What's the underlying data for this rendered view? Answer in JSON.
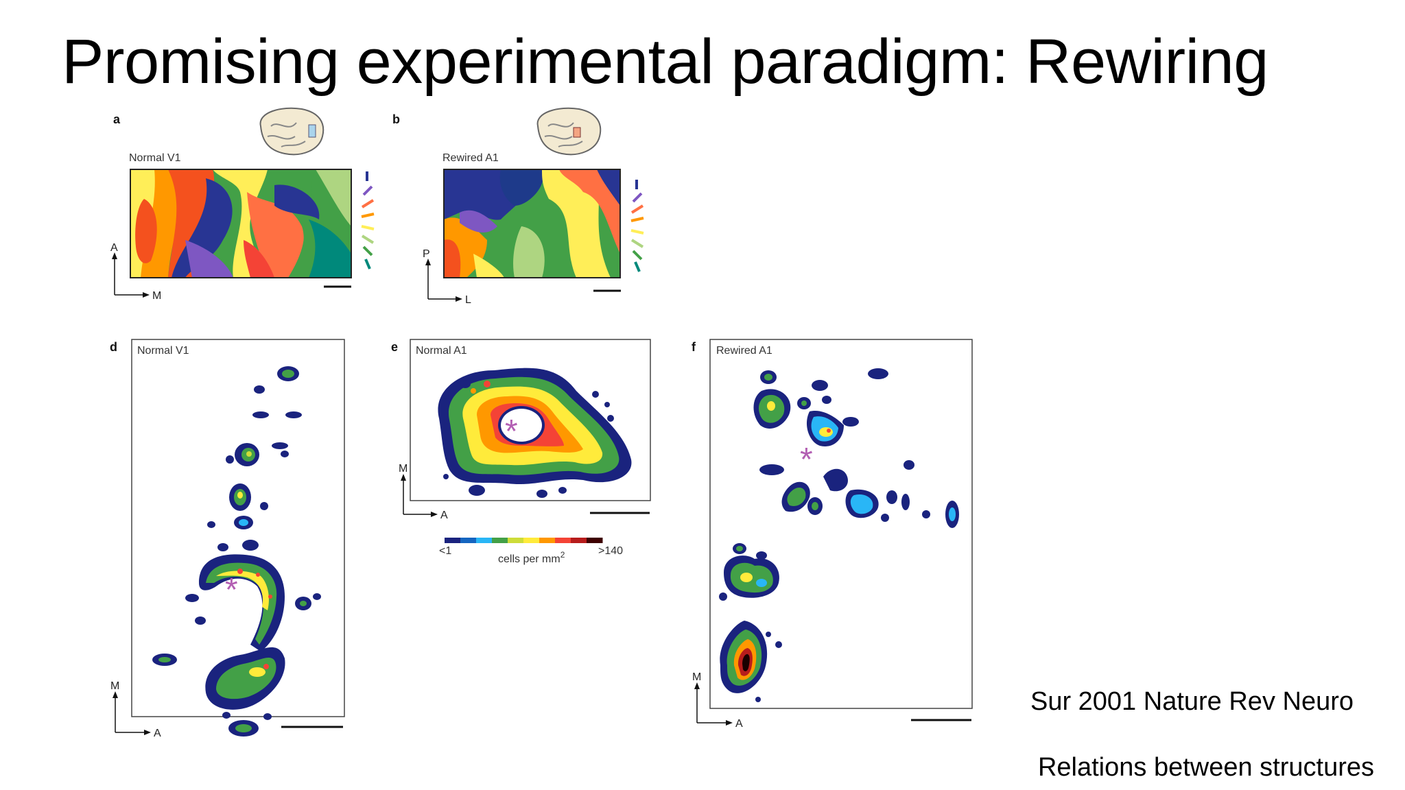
{
  "slide": {
    "title": "Promising experimental paradigm: Rewiring",
    "citation": "Sur 2001 Nature Rev Neuro",
    "caption": "Relations between structures"
  },
  "figure": {
    "panels": [
      {
        "letter": "a",
        "label": "Normal V1",
        "axis_up": "A",
        "axis_right": "M"
      },
      {
        "letter": "b",
        "label": "Rewired A1",
        "axis_up": "P",
        "axis_right": "L"
      },
      {
        "letter": "d",
        "label": "Normal V1",
        "axis_up": "M",
        "axis_right": "A"
      },
      {
        "letter": "e",
        "label": "Normal A1",
        "axis_up": "M",
        "axis_right": "A"
      },
      {
        "letter": "f",
        "label": "Rewired A1",
        "axis_up": "M",
        "axis_right": "A"
      }
    ],
    "colorbar": {
      "min_label": "<1",
      "max_label": ">140",
      "unit": "cells per mm",
      "unit_sup": "2",
      "colors": [
        "#1a237e",
        "#1565c0",
        "#29b6f6",
        "#43a047",
        "#cddc39",
        "#ffeb3b",
        "#ff9800",
        "#f44336",
        "#b71c1c",
        "#3e0000"
      ]
    },
    "orientation_colors": [
      "#283593",
      "#7e57c2",
      "#ff7043",
      "#ff9800",
      "#ffee58",
      "#aed581",
      "#43a047",
      "#00897b"
    ]
  }
}
